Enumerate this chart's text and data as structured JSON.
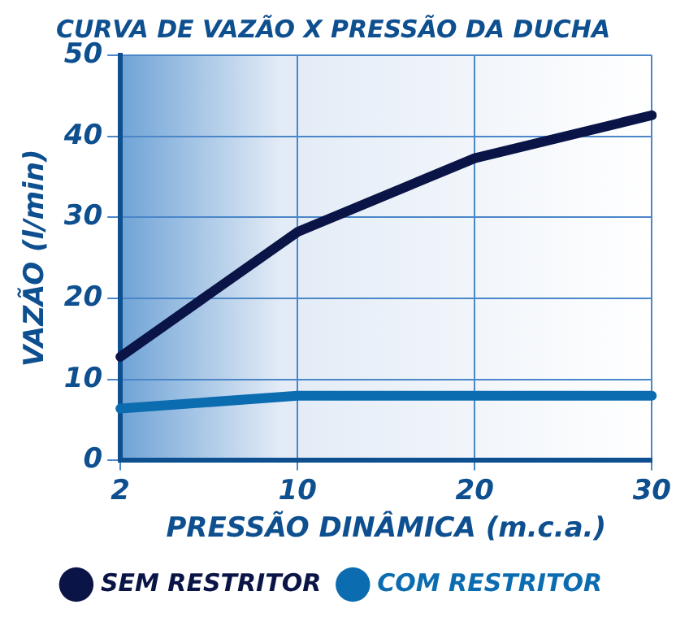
{
  "chart_data": {
    "type": "line",
    "title": "CURVA DE VAZÃO X PRESSÃO DA DUCHA",
    "xlabel": "PRESSÃO DINÂMICA (m.c.a.)",
    "ylabel": "VAZÃO (l/min)",
    "categories": [
      "2",
      "10",
      "20",
      "30"
    ],
    "series": [
      {
        "name": "SEM RESTRITOR",
        "color": "#0a1446",
        "values": [
          12.8,
          28.2,
          37.3,
          42.6
        ]
      },
      {
        "name": "COM RESTRITOR",
        "color": "#0b6cb0",
        "values": [
          6.4,
          8,
          8,
          8
        ]
      }
    ],
    "ylim": [
      0,
      50
    ],
    "yticks": [
      0,
      10,
      20,
      30,
      40,
      50
    ],
    "grid": true,
    "legend": "bottom",
    "marker": "none",
    "line_style": "solid"
  }
}
